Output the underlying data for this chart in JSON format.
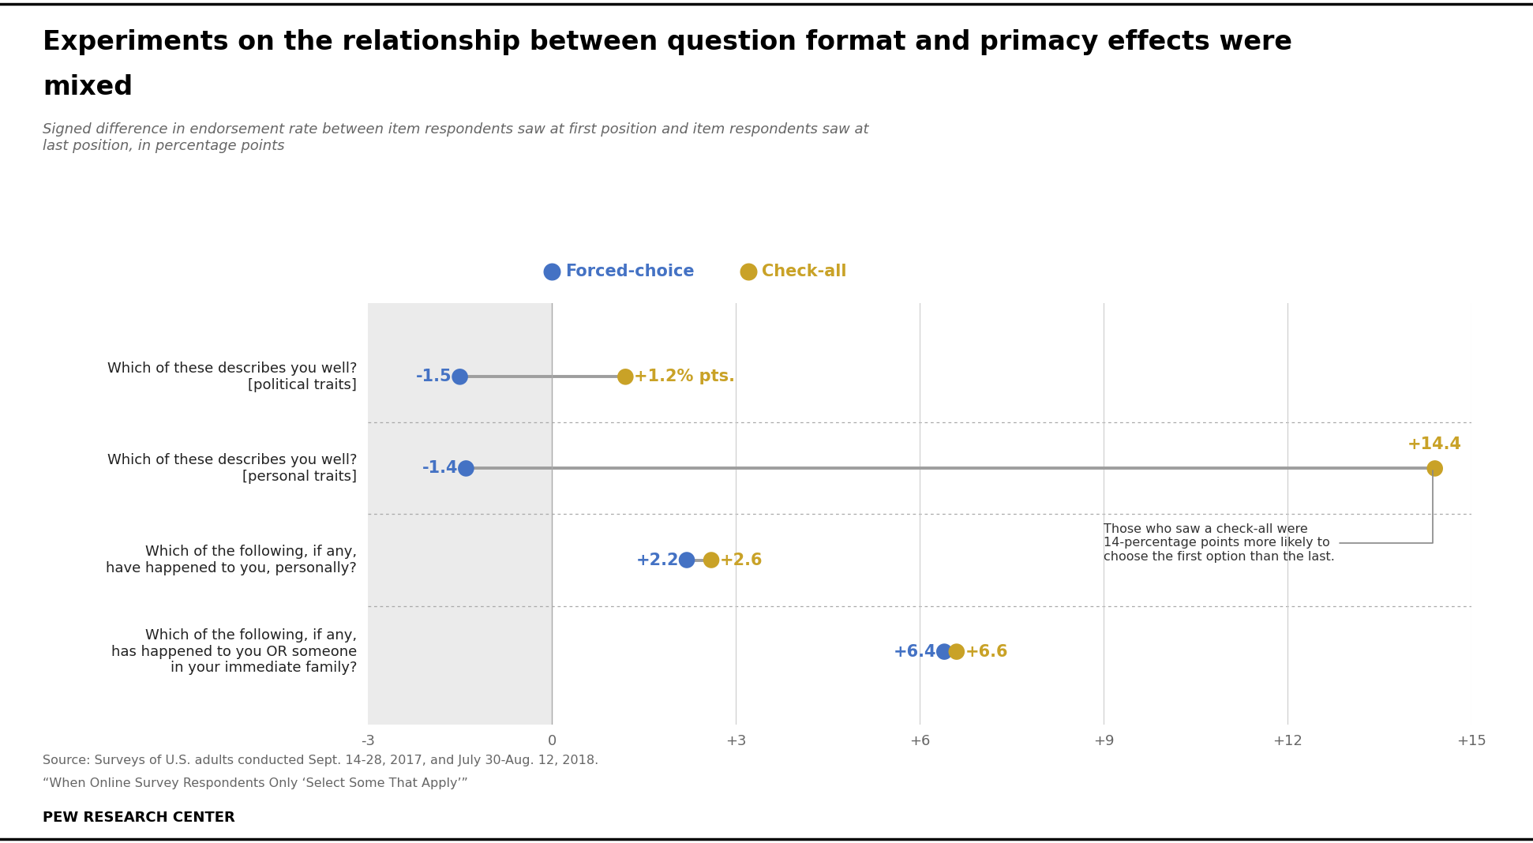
{
  "title_line1": "Experiments on the relationship between question format and primacy effects were",
  "title_line2": "mixed",
  "subtitle": "Signed difference in endorsement rate between item respondents saw at first position and item respondents saw at\nlast position, in percentage points",
  "categories": [
    "Which of these describes you well?\n[political traits]",
    "Which of these describes you well?\n[personal traits]",
    "Which of the following, if any,\nhave happened to you, personally?",
    "Which of the following, if any,\nhas happened to you OR someone\nin your immediate family?"
  ],
  "forced_choice": [
    -1.5,
    -1.4,
    2.2,
    6.4
  ],
  "check_all": [
    1.2,
    14.4,
    2.6,
    6.6
  ],
  "forced_choice_color": "#4472C4",
  "check_all_color": "#C9A227",
  "line_color": "#9E9E9E",
  "xlim": [
    -3,
    15
  ],
  "xticks": [
    -3,
    0,
    3,
    6,
    9,
    12,
    15
  ],
  "xtick_labels": [
    "-3",
    "0",
    "+3",
    "+6",
    "+9",
    "+12",
    "+15"
  ],
  "fc_labels": [
    "-1.5",
    "-1.4",
    "+2.2",
    "+6.4"
  ],
  "ca_labels": [
    "+1.2% pts.",
    "+14.4",
    "+2.6",
    "+6.6"
  ],
  "annotation_text": "Those who saw a check-all were\n14-percentage points more likely to\nchoose the first option than the last.",
  "source_line1": "Source: Surveys of U.S. adults conducted Sept. 14-28, 2017, and July 30-Aug. 12, 2018.",
  "source_line2": "“When Online Survey Respondents Only ‘Select Some That Apply’”",
  "footer_text": "PEW RESEARCH CENTER",
  "background_color": "#FFFFFF",
  "shaded_region_color": "#EBEBEB",
  "legend_forced": "Forced-choice",
  "legend_check": "Check-all",
  "top_line_color": "#000000"
}
